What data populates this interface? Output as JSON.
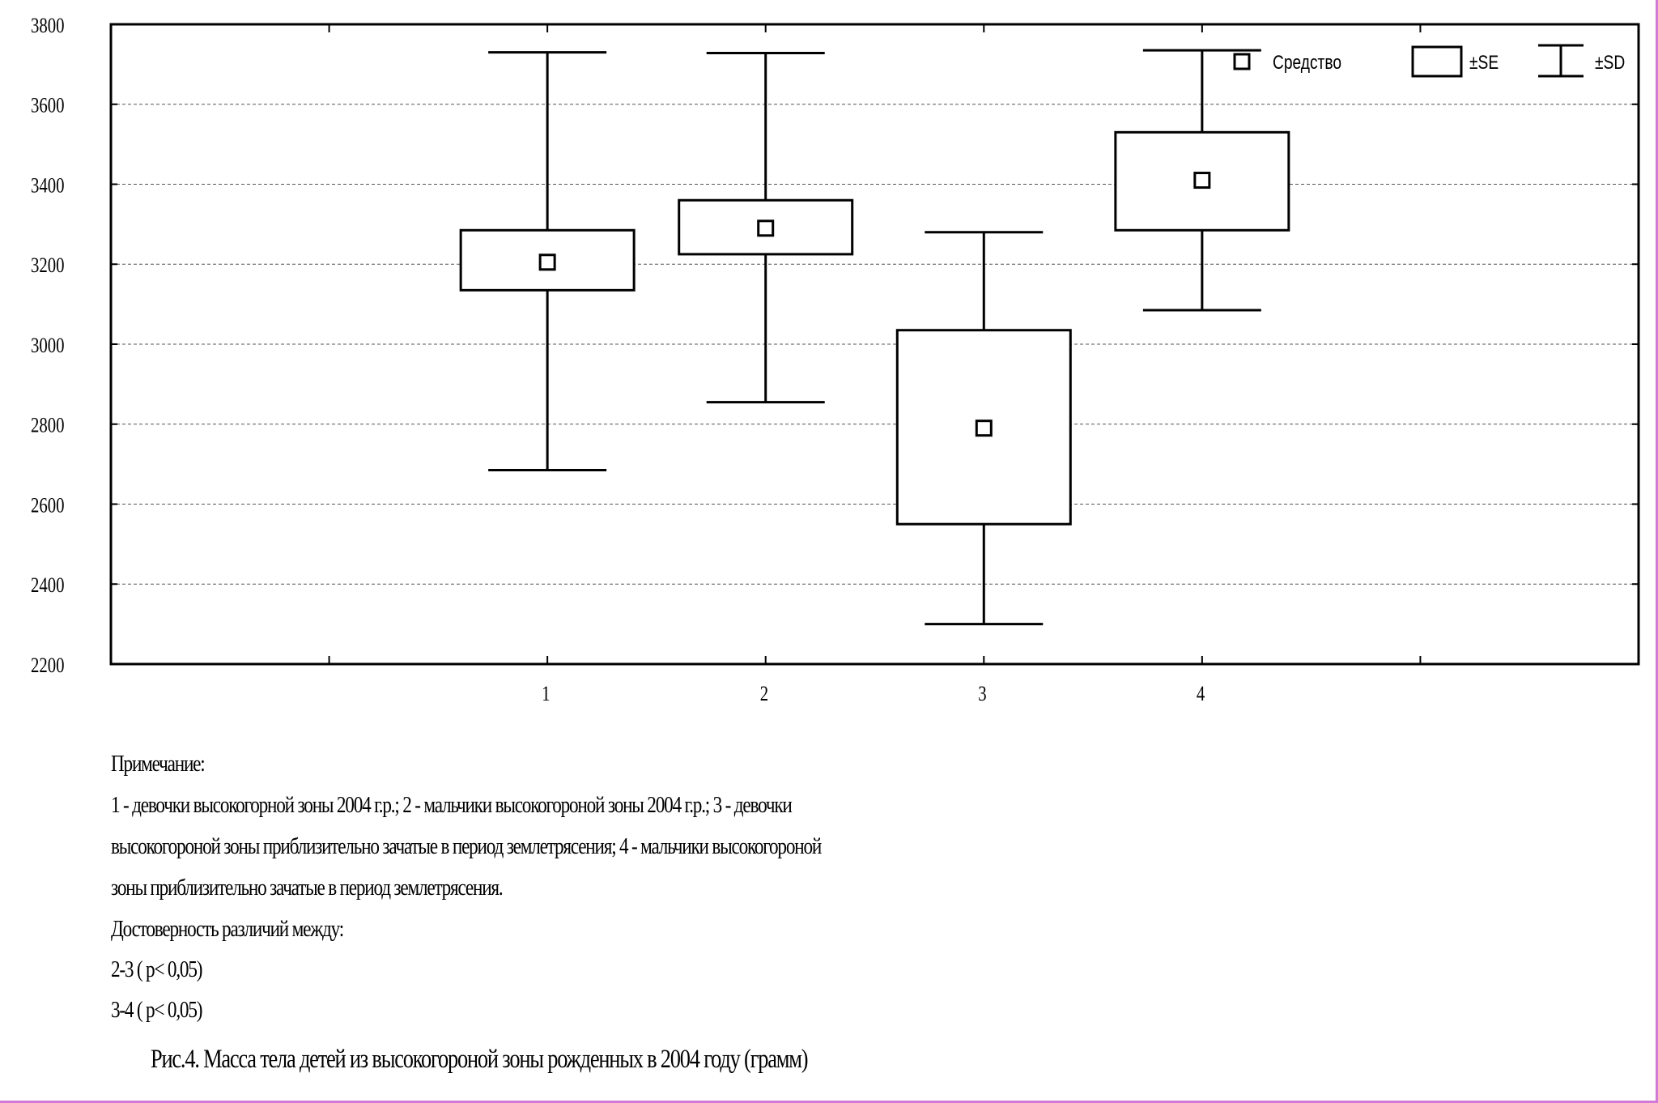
{
  "chart_data": {
    "type": "box",
    "categories": [
      "1",
      "2",
      "3",
      "4"
    ],
    "series": [
      {
        "category": "1",
        "mean": 3205,
        "se_low": 3135,
        "se_high": 3285,
        "sd_low": 2685,
        "sd_high": 3730
      },
      {
        "category": "2",
        "mean": 3290,
        "se_low": 3225,
        "se_high": 3360,
        "sd_low": 2855,
        "sd_high": 3728
      },
      {
        "category": "3",
        "mean": 2790,
        "se_low": 2550,
        "se_high": 3035,
        "sd_low": 2300,
        "sd_high": 3280
      },
      {
        "category": "4",
        "mean": 3410,
        "se_low": 3285,
        "se_high": 3530,
        "sd_low": 3085,
        "sd_high": 3735
      }
    ],
    "ylim": [
      2200,
      3800
    ],
    "yticks": [
      "2200",
      "2400",
      "2600",
      "2800",
      "3000",
      "3200",
      "3400",
      "3600",
      "3800"
    ],
    "grid": true,
    "legend": {
      "placement": "top-right",
      "items": [
        {
          "symbol": "mean-square",
          "label": "Средство"
        },
        {
          "symbol": "box",
          "label": "±SE"
        },
        {
          "symbol": "whisker",
          "label": "±SD"
        }
      ]
    }
  },
  "notes": {
    "heading": "Примечание:",
    "line1": "1 - девочки высокогорной зоны 2004 г.р.; 2 - мальчики высокогороной зоны 2004 г.р.; 3 - девочки",
    "line2": "высокогороной зоны приблизительно зачатые в период землетрясения;  4 - мальчики высокогороной",
    "line3": "зоны приблизительно зачатые в период землетрясения.",
    "significance_heading": "Достоверность различий между:",
    "sig1": "2-3 (        p<     0,05)",
    "sig2": "3-4 (        p<     0,05)"
  },
  "caption": "Рис.4. Масса тела детей из высокогороной зоны рожденных в 2004 году (грамм)"
}
